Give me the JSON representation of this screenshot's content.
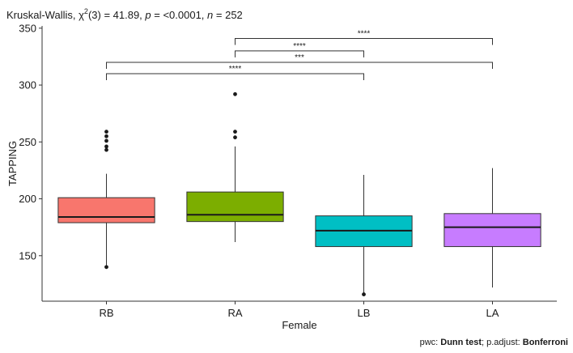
{
  "chart_data": {
    "type": "box",
    "title": {
      "prefix": "Kruskal-Wallis, ",
      "chi": "χ",
      "chi_sup": "2",
      "df": "(3) = 41.89, ",
      "p_label": "p",
      "p_value": " = <0.0001, ",
      "n_label": "n",
      "n_value": " = 252"
    },
    "xlabel": "Female",
    "ylabel": "TAPPING",
    "ylim": [
      110,
      352
    ],
    "yticks": [
      150,
      200,
      250,
      300,
      350
    ],
    "categories": [
      "RB",
      "RA",
      "LB",
      "LA"
    ],
    "boxes": [
      {
        "name": "RB",
        "color": "#F8766D",
        "min": 140,
        "q1": 179,
        "median": 184,
        "q3": 201,
        "max": 222,
        "outliers": [
          140,
          243,
          246,
          251,
          255,
          259
        ]
      },
      {
        "name": "RA",
        "color": "#7CAE00",
        "min": 162,
        "q1": 180,
        "median": 186,
        "q3": 206,
        "max": 246,
        "outliers": [
          254,
          259,
          292
        ]
      },
      {
        "name": "LB",
        "color": "#00BFC4",
        "min": 116,
        "q1": 158,
        "median": 172,
        "q3": 185,
        "max": 221,
        "outliers": [
          116
        ]
      },
      {
        "name": "LA",
        "color": "#C77CFF",
        "min": 122,
        "q1": 158,
        "median": 175,
        "q3": 187,
        "max": 227,
        "outliers": []
      }
    ],
    "comparisons": [
      {
        "from": "RB",
        "to": "LB",
        "y": 310,
        "label": "****"
      },
      {
        "from": "RB",
        "to": "LA",
        "y": 320,
        "label": "***"
      },
      {
        "from": "RA",
        "to": "LB",
        "y": 330,
        "label": "****"
      },
      {
        "from": "RA",
        "to": "LA",
        "y": 341,
        "label": "****"
      }
    ],
    "caption": {
      "prefix": "pwc: ",
      "test": "Dunn test",
      "mid": "; p.adjust: ",
      "method": "Bonferroni"
    },
    "grid": false,
    "legend": "none"
  }
}
